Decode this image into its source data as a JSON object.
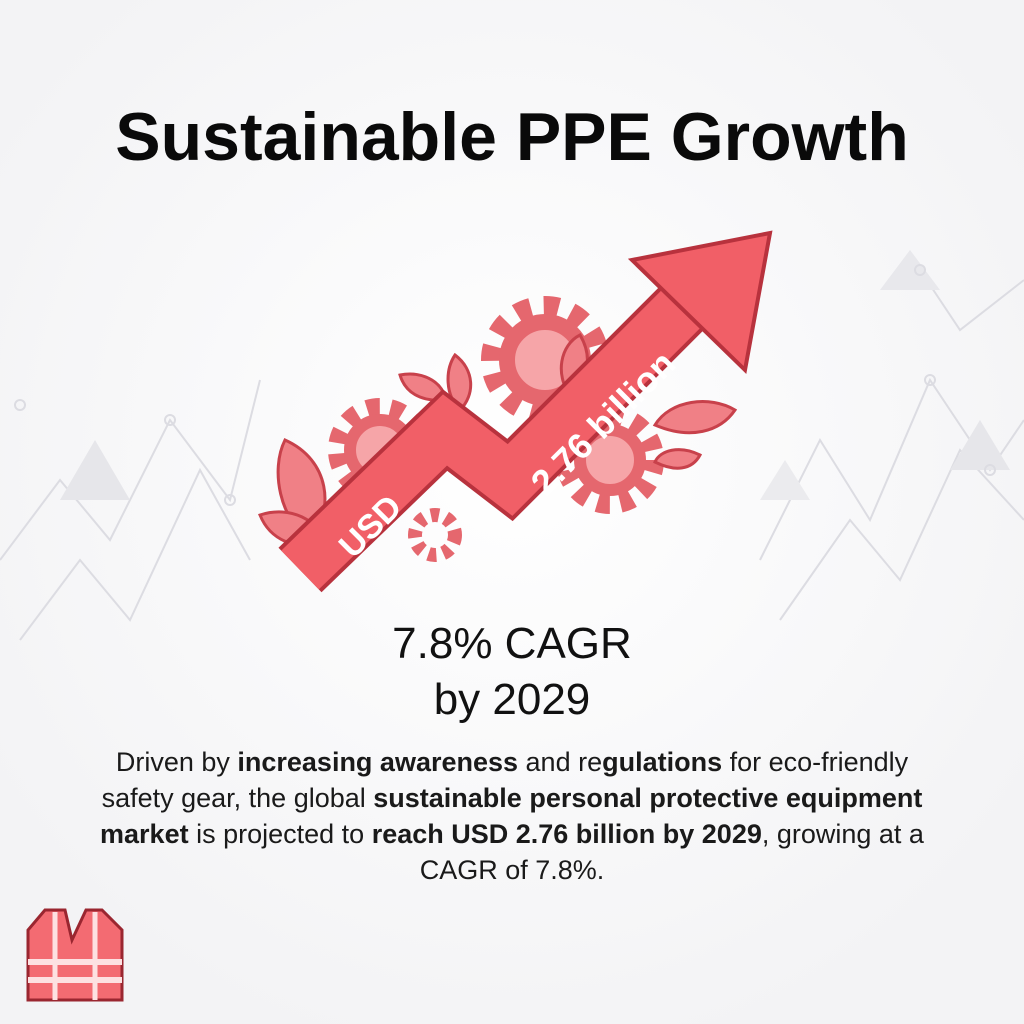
{
  "header": {
    "title": "Sustainable PPE Growth"
  },
  "graphic": {
    "arrow_labels": [
      "USD",
      "2.76 billion"
    ]
  },
  "stat": {
    "lines": [
      "7.8% CAGR",
      "by 2029"
    ]
  },
  "paragraph": {
    "segments": [
      {
        "text": "Driven by ",
        "bold": false
      },
      {
        "text": "increasing awareness",
        "bold": true
      },
      {
        "text": " and re",
        "bold": false
      },
      {
        "text": "gulations",
        "bold": true
      },
      {
        "text": " for eco-friendly safety gear, the global ",
        "bold": false
      },
      {
        "text": "sustainable personal protective equipment market",
        "bold": true
      },
      {
        "text": " is projected to ",
        "bold": false
      },
      {
        "text": "reach USD 2.76 billion by 2029",
        "bold": true
      },
      {
        "text": ", growing at a CAGR of 7.8%.",
        "bold": false
      }
    ]
  }
}
